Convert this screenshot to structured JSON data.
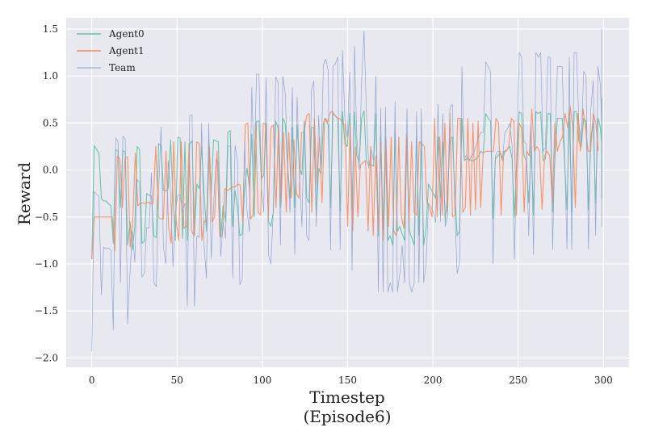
{
  "chart_data": {
    "type": "line",
    "title": "",
    "xlabel": "Timestep",
    "xlabel_sub": "(Episode6)",
    "ylabel": "Reward",
    "xlim": [
      -15,
      315
    ],
    "ylim": [
      -2.1,
      1.62
    ],
    "x_ticks": [
      0,
      50,
      100,
      150,
      200,
      250,
      300
    ],
    "y_ticks": [
      -2.0,
      -1.5,
      -1.0,
      -0.5,
      0.0,
      0.5,
      1.0,
      1.5
    ],
    "y_tick_labels": [
      "−2.0",
      "−1.5",
      "−1.0",
      "−0.5",
      "0.0",
      "0.5",
      "1.0",
      "1.5"
    ],
    "grid": true,
    "legend_position": "top-left",
    "background": "#e8e8f1",
    "series": [
      {
        "name": "Agent0",
        "color": "#66c2a5",
        "line_width": 1.1,
        "x_start": 0,
        "values": [
          -0.95,
          0.26,
          0.22,
          0.18,
          -0.3,
          -0.33,
          -0.33,
          -0.36,
          -0.38,
          -0.78,
          0.22,
          0.2,
          -0.4,
          0.21,
          0.19,
          -0.8,
          -0.55,
          -0.85,
          -0.6,
          0.25,
          0.22,
          -0.78,
          -0.76,
          -0.25,
          -0.27,
          -0.28,
          -0.7,
          -0.72,
          0.28,
          0.26,
          -0.22,
          -0.22,
          -0.2,
          0.32,
          -0.28,
          -0.75,
          0.35,
          0.34,
          -0.73,
          0.3,
          -0.75,
          0.28,
          0.31,
          -0.7,
          -0.15,
          -0.2,
          0.25,
          -0.23,
          -0.65,
          0.3,
          -0.24,
          0.32,
          0.31,
          0.3,
          -0.72,
          -0.38,
          -0.55,
          0.4,
          0.42,
          -0.6,
          -0.22,
          -0.4,
          -0.7,
          -0.68,
          -0.2,
          0.02,
          -0.18,
          0.38,
          -0.5,
          0.52,
          0.52,
          -0.1,
          -0.05,
          0.5,
          -0.55,
          -0.6,
          -0.45,
          0.52,
          0.45,
          -0.4,
          0.55,
          0.5,
          0.05,
          -0.3,
          0.45,
          -0.4,
          0.48,
          0.02,
          -0.05,
          0.52,
          -0.3,
          -0.35,
          0.45,
          0.45,
          -0.48,
          0.02,
          -0.05,
          0.5,
          0.55,
          0.48,
          -0.4,
          0.6,
          0.58,
          0.55,
          -0.44,
          0.62,
          0.28,
          0.25,
          0.6,
          -0.42,
          0.62,
          0.15,
          0.08,
          0.55,
          0.63,
          0.1,
          0.05,
          0.06,
          0.04,
          0.6,
          -0.7,
          0.35,
          -0.65,
          0.35,
          -0.75,
          -0.7,
          -0.8,
          0.4,
          -0.65,
          -0.6,
          -0.68,
          -0.75,
          0.35,
          -0.65,
          -0.72,
          -0.8,
          0.35,
          -0.7,
          0.3,
          -0.8,
          -0.62,
          -0.15,
          -0.2,
          -0.25,
          -0.3,
          0.35,
          -0.3,
          0.3,
          -0.55,
          -0.25,
          0.33,
          0.35,
          -0.2,
          -0.7,
          -0.65,
          0.55,
          0.1,
          0.12,
          0.11,
          0.1,
          0.1,
          0.12,
          0.15,
          0.2,
          0.18,
          0.6,
          0.55,
          0.52,
          -0.52,
          0.12,
          0.15,
          0.18,
          0.1,
          0.2,
          0.22,
          0.25,
          0.12,
          -0.5,
          0.1,
          0.62,
          0.6,
          0.15,
          0.1,
          -0.35,
          0.25,
          -0.48,
          0.62,
          0.6,
          0.62,
          0.1,
          0.12,
          0.6,
          0.6,
          -0.45,
          0.15,
          0.55,
          0.55,
          0.55,
          0.1,
          -0.42,
          0.6,
          -0.45,
          0.62,
          0.62,
          0.3,
          0.25,
          0.55,
          0.52,
          -0.42,
          0.35,
          0.5,
          -0.35,
          0.55,
          0.45,
          0.28,
          0.72,
          0.76,
          -0.3,
          0.25
        ],
        "x_step": 1.4
      },
      {
        "name": "Agent1",
        "color": "#fc8d62",
        "line_width": 1.1,
        "x_start": 0,
        "values": [
          -0.95,
          -0.5,
          -0.5,
          -0.5,
          -0.5,
          -0.5,
          -0.5,
          -0.5,
          -0.5,
          -0.86,
          0.15,
          0.12,
          -0.4,
          0.13,
          0.14,
          -0.82,
          -0.55,
          0.18,
          -0.38,
          -0.35,
          -0.35,
          -0.36,
          -0.34,
          -0.36,
          -0.35,
          0.25,
          -0.5,
          -0.52,
          -0.52,
          0.2,
          -0.6,
          -0.78,
          0.3,
          -0.55,
          -0.75,
          0.3,
          -0.62,
          -0.6,
          0.28,
          -0.65,
          -0.7,
          0.3,
          0.28,
          -0.75,
          -0.55,
          -0.52,
          0.25,
          -0.55,
          -0.5,
          0.2,
          -0.7,
          -0.7,
          -0.2,
          -0.22,
          -0.2,
          -0.18,
          -0.18,
          -0.15,
          -0.16,
          -0.55,
          0.48,
          0.5,
          -0.52,
          -0.48,
          0.5,
          -0.45,
          -0.48,
          0.5,
          0.48,
          -0.5,
          0.45,
          0.48,
          -0.4,
          0.48,
          -0.35,
          0.4,
          -0.45,
          0.4,
          -0.3,
          0.32,
          -0.25,
          -0.3,
          0.4,
          0.4,
          0.58,
          0.6,
          -0.45,
          0.55,
          -0.15,
          0.35,
          -0.35,
          0.55,
          0.5,
          0.6,
          0.63,
          0.58,
          0.55,
          0.55,
          0.5,
          0.48,
          -0.6,
          0.5,
          -0.65,
          0.25,
          -0.5,
          0.05,
          0.08,
          0.1,
          -0.65,
          0.25,
          -0.7,
          0.15,
          -0.65,
          0.3,
          -0.75,
          0.32,
          -0.6,
          0.35,
          -0.65,
          -0.7,
          0.35,
          -0.5,
          -0.62,
          0.38,
          -0.55,
          0.3,
          -0.45,
          -0.48,
          0.3,
          0.28,
          0.25,
          -0.35,
          -0.4,
          -0.5,
          0.55,
          -0.5,
          0.35,
          -0.48,
          0.5,
          -0.45,
          0.6,
          -0.5,
          -0.48,
          0.55,
          0.55,
          -0.45,
          -0.4,
          0.55,
          -0.48,
          0.5,
          -0.42,
          0.52,
          -0.4,
          0.18,
          0.2,
          0.2,
          0.2,
          0.2,
          0.55,
          0.5,
          -0.48,
          0.2,
          0.2,
          0.25,
          0.55,
          0.52,
          -0.48,
          0.5,
          0.45,
          -0.45,
          0.2,
          0.15,
          0.65,
          0.2,
          0.25,
          0.2,
          -0.42,
          0.15,
          0.2,
          0.15,
          -0.35,
          0.5,
          0.2,
          0.3,
          0.35,
          0.6,
          0.45,
          0.68,
          0.45,
          -0.4,
          0.6,
          0.2,
          0.65,
          0.45,
          0.2,
          0.2,
          0.6,
          0.5,
          0.2
        ],
        "x_step": 1.5
      },
      {
        "name": "Team",
        "color": "#8da0cb",
        "line_width": 0.7,
        "x_start": 0,
        "values": [
          -1.93,
          -0.23,
          -0.26,
          -0.28,
          -1.33,
          -0.82,
          -0.84,
          -0.83,
          -0.85,
          -1.7,
          0.34,
          0.3,
          -1.2,
          0.36,
          0.33,
          -1.64,
          -1.1,
          -0.65,
          -0.98,
          -0.1,
          -0.13,
          -1.14,
          -1.1,
          -0.61,
          -0.62,
          -0.03,
          -1.2,
          -1.24,
          -0.24,
          0.46,
          -0.82,
          -1.0,
          0.1,
          -0.23,
          -1.03,
          -0.45,
          -0.27,
          -0.26,
          -0.45,
          -0.35,
          -1.45,
          0.58,
          0.59,
          -1.45,
          -0.7,
          -0.72,
          0.5,
          -0.78,
          -1.15,
          0.5,
          -0.94,
          -0.38,
          0.11,
          0.08,
          -0.92,
          -0.56,
          -0.73,
          0.25,
          0.26,
          -1.15,
          0.26,
          0.1,
          -1.22,
          -1.16,
          0.3,
          -0.43,
          -0.66,
          0.88,
          -0.02,
          1.02,
          1.02,
          -0.15,
          -0.45,
          0.98,
          -0.9,
          -1.0,
          -0.45,
          0.99,
          0.93,
          -0.8,
          1.0,
          0.82,
          0.07,
          -0.45,
          0.88,
          -0.9,
          0.78,
          -0.05,
          -0.6,
          0.52,
          -0.7,
          -0.75,
          0.85,
          0.95,
          -0.6,
          0.58,
          0.03,
          1.12,
          1.18,
          1.06,
          -0.85,
          1.1,
          1.13,
          1.2,
          -0.85,
          1.27,
          0.53,
          0.35,
          1.04,
          -1.07,
          1.32,
          0.34,
          0.0,
          0.95,
          1.48,
          0.63,
          0.02,
          0.22,
          0.1,
          1.0,
          -1.3,
          0.66,
          -1.3,
          0.67,
          -1.3,
          -1.2,
          -1.3,
          0.73,
          -1.3,
          -1.1,
          -0.8,
          -1.2,
          0.65,
          -1.2,
          -1.3,
          -1.2,
          0.62,
          -1.2,
          0.65,
          -1.2,
          -1.0,
          -0.35,
          -0.39,
          -0.45,
          -0.56,
          0.7,
          -0.55,
          0.6,
          -0.6,
          -0.5,
          0.66,
          0.7,
          -0.4,
          -1.1,
          -1.0,
          1.1,
          0.12,
          0.16,
          0.1,
          0.15,
          0.18,
          0.27,
          0.35,
          0.4,
          0.4,
          1.15,
          1.1,
          1.04,
          -1.0,
          0.15,
          0.2,
          0.2,
          0.12,
          0.4,
          0.43,
          0.5,
          0.27,
          -0.95,
          0.2,
          1.25,
          1.2,
          0.3,
          0.28,
          -0.7,
          0.5,
          -0.9,
          1.25,
          1.2,
          1.25,
          0.2,
          0.24,
          1.2,
          1.2,
          -0.85,
          0.3,
          1.1,
          1.1,
          1.1,
          0.2,
          -0.84,
          1.2,
          -0.85,
          1.25,
          1.25,
          0.5,
          0.3,
          1.05,
          1.0,
          -0.84,
          0.65,
          0.95,
          -0.7,
          1.1,
          0.9,
          0.45,
          1.45,
          1.5,
          -0.6,
          0.45
        ],
        "x_step": 1.4
      }
    ]
  }
}
